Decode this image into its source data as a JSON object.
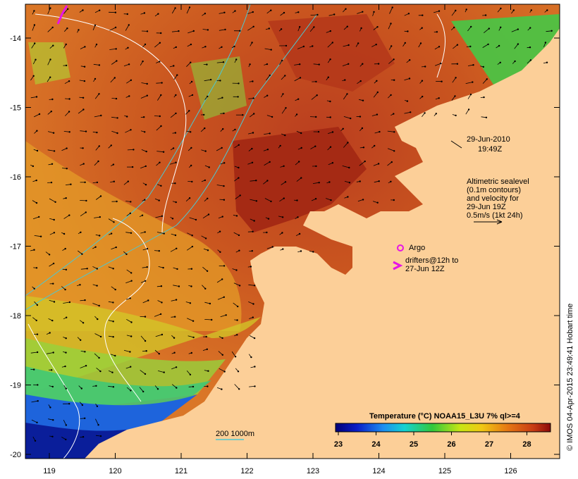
{
  "map": {
    "date": "29-Jun-2010",
    "time": "19:49Z",
    "sealevel_note": {
      "line1": "Altimetric sealevel",
      "line2": "(0.1m contours)",
      "line3": "and velocity for",
      "line4": "29-Jun 19Z",
      "line5": "0.5m/s (1kt 24h)"
    },
    "argo_label": "Argo",
    "drifters_label": {
      "line1": "drifters@12h to",
      "line2": "27-Jun 12Z"
    },
    "depth_label": "200  1000m",
    "credit": "© IMOS 04-Apr-2015 23:49:41 Hobart time",
    "colorbar": {
      "title": "Temperature (°C) NOAA15_L3U 7% ql>=4",
      "ticks": [
        "23",
        "24",
        "25",
        "26",
        "27",
        "28"
      ]
    },
    "lon_ticks": [
      "119",
      "120",
      "121",
      "122",
      "123",
      "124",
      "125",
      "126"
    ],
    "lat_ticks": [
      "-14",
      "-15",
      "-16",
      "-17",
      "-18",
      "-19",
      "-20"
    ],
    "colors": {
      "land": "#fccf98",
      "warm": "#b43c14",
      "mid": "#e68228",
      "yellow": "#dcdc14",
      "green": "#28c850",
      "cyan": "#14c8dc",
      "blue": "#1432c8",
      "argo": "#e614e6",
      "isobath": "#4cc8d2"
    }
  }
}
